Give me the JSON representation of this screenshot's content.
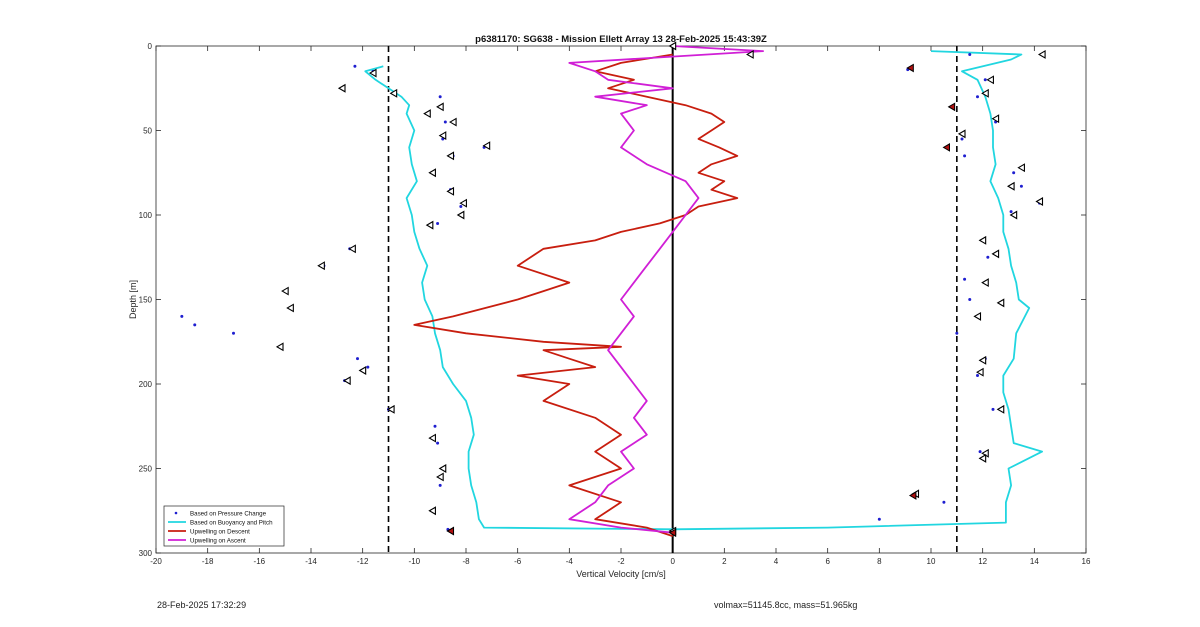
{
  "chart_data": {
    "type": "line",
    "title": "p6381170: SG638 - Mission Ellett Array 13 28-Feb-2025 15:43:39Z",
    "xlabel": "Vertical Velocity [cm/s]",
    "ylabel": "Depth [m]",
    "xlim": [
      -20,
      16
    ],
    "ylim": [
      0,
      300
    ],
    "y_reversed": true,
    "x_ticks": [
      -20,
      -18,
      -16,
      -14,
      -12,
      -10,
      -8,
      -6,
      -4,
      -2,
      0,
      2,
      4,
      6,
      8,
      10,
      12,
      14,
      16
    ],
    "y_ticks": [
      0,
      50,
      100,
      150,
      200,
      250,
      300
    ],
    "grid": false,
    "legend_position": "bottom-left",
    "reference_lines": [
      {
        "x": -11,
        "style": "dashed",
        "color": "#000000"
      },
      {
        "x": 11,
        "style": "dashed",
        "color": "#000000"
      },
      {
        "x": 0,
        "style": "solid",
        "color": "#000000"
      }
    ],
    "series": [
      {
        "name": "Based on Buoyancy and Pitch",
        "color": "#21d6e0",
        "kind": "line",
        "points": [
          [
            -11.2,
            12
          ],
          [
            -11.9,
            15
          ],
          [
            -11.5,
            20
          ],
          [
            -11.0,
            25
          ],
          [
            -10.5,
            30
          ],
          [
            -10.2,
            35
          ],
          [
            -10.3,
            40
          ],
          [
            -10.0,
            50
          ],
          [
            -10.2,
            60
          ],
          [
            -10.1,
            70
          ],
          [
            -9.9,
            80
          ],
          [
            -10.3,
            90
          ],
          [
            -10.1,
            100
          ],
          [
            -10.0,
            110
          ],
          [
            -9.8,
            120
          ],
          [
            -9.5,
            130
          ],
          [
            -9.7,
            140
          ],
          [
            -9.6,
            150
          ],
          [
            -9.3,
            160
          ],
          [
            -9.2,
            170
          ],
          [
            -9.0,
            180
          ],
          [
            -8.9,
            190
          ],
          [
            -8.5,
            200
          ],
          [
            -8.0,
            210
          ],
          [
            -7.8,
            220
          ],
          [
            -7.7,
            230
          ],
          [
            -7.9,
            240
          ],
          [
            -7.9,
            250
          ],
          [
            -7.8,
            260
          ],
          [
            -7.6,
            270
          ],
          [
            -7.5,
            280
          ],
          [
            -7.3,
            285
          ],
          [
            0,
            286
          ],
          [
            6,
            285
          ],
          [
            12.9,
            282
          ],
          [
            12.9,
            270
          ],
          [
            13.1,
            260
          ],
          [
            13.0,
            250
          ],
          [
            14.3,
            240
          ],
          [
            13.2,
            235
          ],
          [
            13.1,
            225
          ],
          [
            13.0,
            215
          ],
          [
            12.8,
            205
          ],
          [
            12.8,
            195
          ],
          [
            13.2,
            185
          ],
          [
            13.3,
            170
          ],
          [
            13.8,
            155
          ],
          [
            13.4,
            150
          ],
          [
            13.3,
            140
          ],
          [
            13.1,
            130
          ],
          [
            13.0,
            120
          ],
          [
            12.8,
            110
          ],
          [
            12.8,
            100
          ],
          [
            12.6,
            90
          ],
          [
            12.3,
            80
          ],
          [
            12.5,
            70
          ],
          [
            12.4,
            60
          ],
          [
            12.4,
            50
          ],
          [
            12.3,
            40
          ],
          [
            12.1,
            30
          ],
          [
            11.8,
            20
          ],
          [
            11.2,
            15
          ],
          [
            13.1,
            8
          ],
          [
            13.5,
            5
          ],
          [
            10,
            3
          ]
        ]
      },
      {
        "name": "Upwelling on Descent",
        "color": "#c81e0f",
        "kind": "line",
        "points": [
          [
            0,
            5
          ],
          [
            -2,
            10
          ],
          [
            -3,
            15
          ],
          [
            -1.5,
            20
          ],
          [
            -2.5,
            25
          ],
          [
            -1,
            30
          ],
          [
            0.5,
            35
          ],
          [
            1.5,
            40
          ],
          [
            2,
            45
          ],
          [
            1.5,
            50
          ],
          [
            1,
            55
          ],
          [
            1.8,
            60
          ],
          [
            2.5,
            65
          ],
          [
            1.5,
            70
          ],
          [
            1,
            75
          ],
          [
            2,
            80
          ],
          [
            1.5,
            85
          ],
          [
            2.5,
            90
          ],
          [
            1,
            95
          ],
          [
            0.5,
            100
          ],
          [
            -0.5,
            105
          ],
          [
            -2,
            110
          ],
          [
            -3,
            115
          ],
          [
            -5,
            120
          ],
          [
            -6,
            130
          ],
          [
            -4,
            140
          ],
          [
            -5,
            145
          ],
          [
            -6,
            150
          ],
          [
            -8.5,
            160
          ],
          [
            -10,
            165
          ],
          [
            -8,
            170
          ],
          [
            -5,
            175
          ],
          [
            -2,
            178
          ],
          [
            -5,
            180
          ],
          [
            -4,
            185
          ],
          [
            -3,
            190
          ],
          [
            -6,
            195
          ],
          [
            -4,
            200
          ],
          [
            -5,
            210
          ],
          [
            -3,
            220
          ],
          [
            -2,
            230
          ],
          [
            -3,
            240
          ],
          [
            -2,
            250
          ],
          [
            -4,
            260
          ],
          [
            -2,
            270
          ],
          [
            -3,
            280
          ],
          [
            -1,
            285
          ],
          [
            0,
            290
          ]
        ]
      },
      {
        "name": "Upwelling on Ascent",
        "color": "#d01fd6",
        "kind": "line",
        "points": [
          [
            0,
            0
          ],
          [
            3.5,
            3
          ],
          [
            -4,
            10
          ],
          [
            -3,
            15
          ],
          [
            -2.5,
            20
          ],
          [
            0,
            25
          ],
          [
            -3,
            30
          ],
          [
            -1,
            35
          ],
          [
            -2,
            40
          ],
          [
            -1.5,
            50
          ],
          [
            -2,
            60
          ],
          [
            -1,
            70
          ],
          [
            0.5,
            80
          ],
          [
            1,
            90
          ],
          [
            0.5,
            100
          ],
          [
            0,
            110
          ],
          [
            -0.5,
            120
          ],
          [
            -1,
            130
          ],
          [
            -1.5,
            140
          ],
          [
            -2,
            150
          ],
          [
            -1.5,
            160
          ],
          [
            -2,
            170
          ],
          [
            -2.5,
            180
          ],
          [
            -2,
            190
          ],
          [
            -1.5,
            200
          ],
          [
            -1,
            210
          ],
          [
            -1.5,
            220
          ],
          [
            -1,
            230
          ],
          [
            -2,
            240
          ],
          [
            -1.5,
            250
          ],
          [
            -2.5,
            260
          ],
          [
            -3,
            270
          ],
          [
            -4,
            280
          ],
          [
            -2,
            285
          ],
          [
            0,
            288
          ]
        ]
      },
      {
        "name": "Based on Pressure Change",
        "color": "#1f1fd0",
        "kind": "scatter",
        "points": [
          [
            -12.3,
            12
          ],
          [
            -11.6,
            15
          ],
          [
            -12.8,
            25
          ],
          [
            -9,
            30
          ],
          [
            -9.5,
            40
          ],
          [
            -8.8,
            45
          ],
          [
            -8.9,
            55
          ],
          [
            -7.3,
            60
          ],
          [
            -8.5,
            65
          ],
          [
            -9.3,
            75
          ],
          [
            -8.6,
            85
          ],
          [
            -8.2,
            95
          ],
          [
            -9.1,
            105
          ],
          [
            -12.5,
            120
          ],
          [
            -13.5,
            130
          ],
          [
            -15,
            145
          ],
          [
            -14.8,
            155
          ],
          [
            -19,
            160
          ],
          [
            -18.5,
            165
          ],
          [
            -17,
            170
          ],
          [
            -15.2,
            178
          ],
          [
            -12.2,
            185
          ],
          [
            -11.8,
            190
          ],
          [
            -12.7,
            198
          ],
          [
            -11,
            215
          ],
          [
            -9.2,
            225
          ],
          [
            -9.1,
            235
          ],
          [
            -8.9,
            250
          ],
          [
            -9,
            260
          ],
          [
            -9.3,
            275
          ],
          [
            -8.7,
            286
          ],
          [
            9.1,
            14
          ],
          [
            10.8,
            36
          ],
          [
            10.6,
            60
          ],
          [
            11.3,
            65
          ],
          [
            11.2,
            55
          ],
          [
            12.1,
            20
          ],
          [
            11.8,
            30
          ],
          [
            12.5,
            45
          ],
          [
            13.2,
            75
          ],
          [
            13.5,
            83
          ],
          [
            14.2,
            93
          ],
          [
            13.1,
            98
          ],
          [
            12.0,
            115
          ],
          [
            12.2,
            125
          ],
          [
            11.3,
            138
          ],
          [
            11.5,
            150
          ],
          [
            11.0,
            170
          ],
          [
            12.1,
            185
          ],
          [
            11.8,
            195
          ],
          [
            12.4,
            215
          ],
          [
            11.9,
            240
          ],
          [
            9.3,
            266
          ],
          [
            10.5,
            270
          ],
          [
            8,
            280
          ],
          [
            11.5,
            5
          ],
          [
            14.3,
            5
          ]
        ]
      }
    ],
    "markers_triangle": [
      [
        -11.6,
        16
      ],
      [
        -12.8,
        25
      ],
      [
        -10.8,
        28
      ],
      [
        -9.5,
        40
      ],
      [
        -9.0,
        36
      ],
      [
        -8.5,
        45
      ],
      [
        -8.9,
        53
      ],
      [
        -7.2,
        59
      ],
      [
        -8.6,
        65
      ],
      [
        -9.3,
        75
      ],
      [
        -8.6,
        86
      ],
      [
        -8.1,
        93
      ],
      [
        -8.2,
        100
      ],
      [
        -9.4,
        106
      ],
      [
        -12.4,
        120
      ],
      [
        -13.6,
        130
      ],
      [
        -15,
        145
      ],
      [
        -14.8,
        155
      ],
      [
        -15.2,
        178
      ],
      [
        -12,
        192
      ],
      [
        -12.6,
        198
      ],
      [
        -10.9,
        215
      ],
      [
        -9.3,
        232
      ],
      [
        -8.9,
        250
      ],
      [
        -9,
        255
      ],
      [
        -9.3,
        275
      ],
      [
        -8.6,
        287
      ],
      [
        0,
        0
      ],
      [
        3,
        5
      ],
      [
        0,
        287
      ],
      [
        12.3,
        20
      ],
      [
        12.1,
        28
      ],
      [
        12.5,
        43
      ],
      [
        11.2,
        52
      ],
      [
        13.5,
        72
      ],
      [
        13.1,
        83
      ],
      [
        14.2,
        92
      ],
      [
        13.2,
        100
      ],
      [
        12.0,
        115
      ],
      [
        12.5,
        123
      ],
      [
        12.1,
        140
      ],
      [
        12.7,
        152
      ],
      [
        11.8,
        160
      ],
      [
        12.0,
        186
      ],
      [
        11.9,
        193
      ],
      [
        12.7,
        215
      ],
      [
        12.1,
        241
      ],
      [
        12.0,
        244
      ],
      [
        9.4,
        265
      ],
      [
        14.3,
        5
      ]
    ],
    "markers_red_filled": [
      [
        9.2,
        13
      ],
      [
        10.8,
        36
      ],
      [
        10.6,
        60
      ],
      [
        9.3,
        266
      ],
      [
        -8.6,
        287
      ],
      [
        0,
        288
      ]
    ],
    "legend": [
      {
        "label": "Based on Pressure Change",
        "color": "#1f1fd0",
        "style": "dot"
      },
      {
        "label": "Based on Buoyancy and Pitch",
        "color": "#21d6e0",
        "style": "line"
      },
      {
        "label": "Upwelling on Descent",
        "color": "#c81e0f",
        "style": "line"
      },
      {
        "label": "Upwelling on Ascent",
        "color": "#d01fd6",
        "style": "line"
      }
    ]
  },
  "footer": {
    "timestamp": "28-Feb-2025 17:32:29",
    "vol_mass": "volmax=51145.8cc, mass=51.965kg"
  }
}
